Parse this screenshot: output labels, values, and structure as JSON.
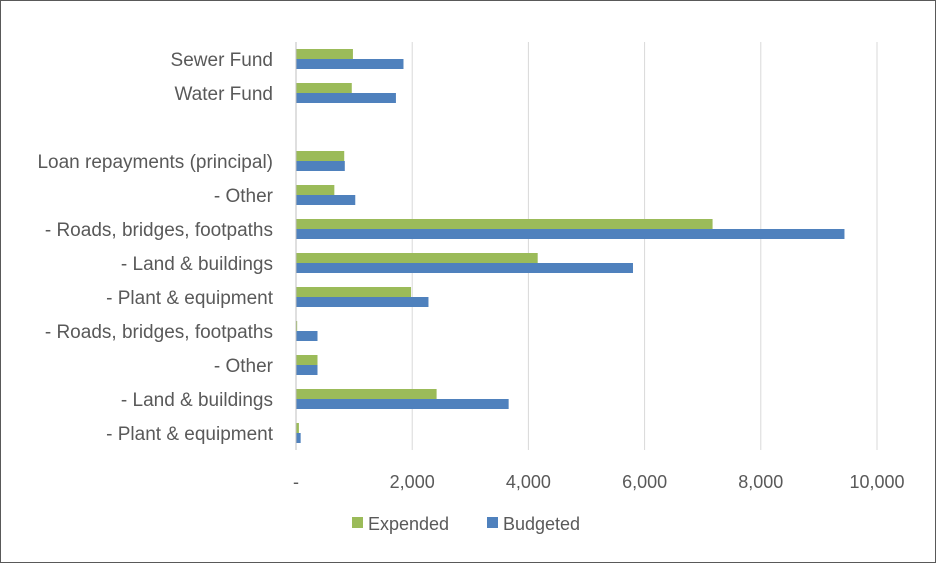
{
  "chart_data": {
    "type": "bar",
    "orientation": "horizontal",
    "categories": [
      "Sewer Fund",
      "Water Fund",
      "",
      "Loan repayments (principal)",
      "- Other",
      "- Roads, bridges, footpaths",
      "- Land & buildings",
      "- Plant & equipment",
      "- Roads, bridges, footpaths",
      "- Other",
      "- Land & buildings",
      "- Plant & equipment"
    ],
    "series": [
      {
        "name": "Expended",
        "color": "#9BBB59",
        "values": [
          980,
          960,
          null,
          830,
          660,
          7170,
          4160,
          1980,
          20,
          370,
          2420,
          50
        ]
      },
      {
        "name": "Budgeted",
        "color": "#4F81BD",
        "values": [
          1850,
          1720,
          null,
          840,
          1020,
          9440,
          5800,
          2280,
          370,
          370,
          3660,
          80
        ]
      }
    ],
    "xlim": [
      0,
      10000
    ],
    "xticks": [
      0,
      2000,
      4000,
      6000,
      8000,
      10000
    ],
    "xtick_labels": [
      "-",
      "2,000",
      "4,000",
      "6,000",
      "8,000",
      "10,000"
    ],
    "grid": true,
    "legend_position": "bottom"
  }
}
